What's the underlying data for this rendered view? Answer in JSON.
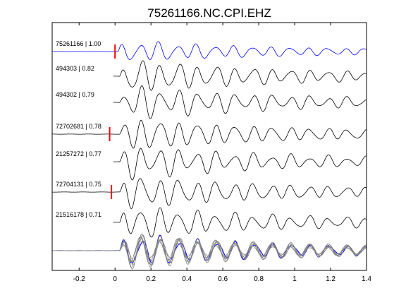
{
  "chart_data": {
    "type": "line",
    "title": "75261166.NC.CPI.EHZ",
    "xlabel": "",
    "ylabel": "",
    "xlim": [
      -0.35,
      1.4
    ],
    "x_ticks": [
      "-0.2",
      "0",
      "0.2",
      "0.4",
      "0.6",
      "0.8",
      "1",
      "1.2",
      "1.4"
    ],
    "x_tick_values": [
      -0.2,
      0,
      0.2,
      0.4,
      0.6,
      0.8,
      1.0,
      1.2,
      1.4
    ],
    "grid": false,
    "colors": {
      "reference": "#0000ff",
      "trace": "#000000",
      "pick": "#ff0000",
      "stack": "#808080"
    },
    "series": [
      {
        "label": "75261166 | 1.00",
        "correlation": 1.0,
        "pick_time": 0.0,
        "color": "#0000ff"
      },
      {
        "label": "494303 | 0.82",
        "correlation": 0.82,
        "pick_time": null,
        "color": "#000000"
      },
      {
        "label": "494302 | 0.79",
        "correlation": 0.79,
        "pick_time": null,
        "color": "#000000"
      },
      {
        "label": "72702681 | 0.78",
        "correlation": 0.78,
        "pick_time": -0.03,
        "color": "#000000"
      },
      {
        "label": "21257272 | 0.77",
        "correlation": 0.77,
        "pick_time": null,
        "color": "#000000"
      },
      {
        "label": "72704131 | 0.75",
        "correlation": 0.75,
        "pick_time": -0.02,
        "color": "#000000"
      },
      {
        "label": "21516178 | 0.71",
        "correlation": 0.71,
        "pick_time": null,
        "color": "#000000"
      }
    ],
    "overlay": {
      "label": "",
      "description": "all traces aligned and overlaid"
    }
  }
}
